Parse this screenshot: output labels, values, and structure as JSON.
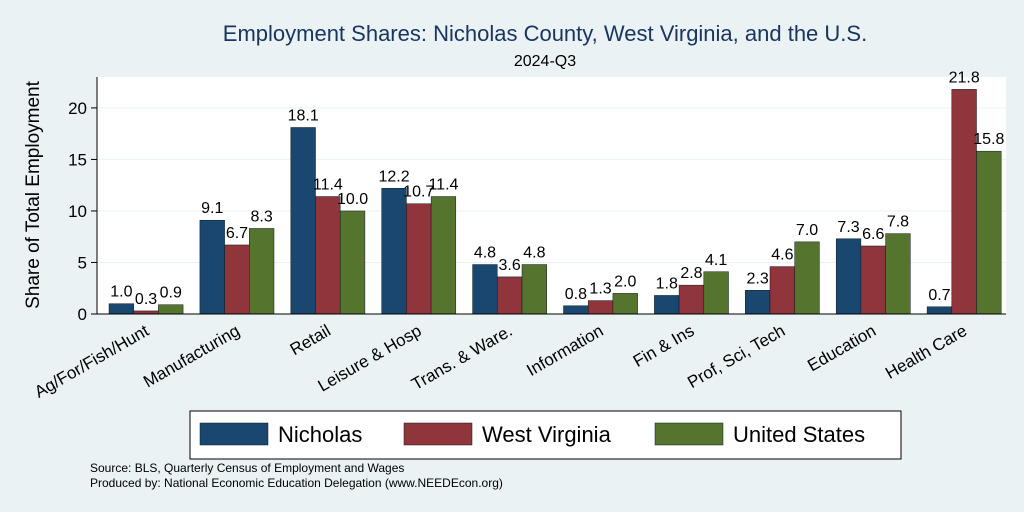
{
  "chart_data": {
    "type": "bar",
    "title": "Employment Shares: Nicholas County, West Virginia, and the U.S.",
    "subtitle": "2024-Q3",
    "xlabel": "",
    "ylabel": "Share of Total Employment",
    "ylim": [
      0,
      23
    ],
    "yticks": [
      0,
      5,
      10,
      15,
      20
    ],
    "grid": true,
    "legend_position": "bottom",
    "categories": [
      "Ag/For/Fish/Hunt",
      "Manufacturing",
      "Retail",
      "Leisure & Hosp",
      "Trans. & Ware.",
      "Information",
      "Fin & Ins",
      "Prof, Sci, Tech",
      "Education",
      "Health Care"
    ],
    "series": [
      {
        "name": "Nicholas",
        "color": "#1a476f",
        "values": [
          1.0,
          9.1,
          18.1,
          12.2,
          4.8,
          0.8,
          1.8,
          2.3,
          7.3,
          0.7
        ]
      },
      {
        "name": "West Virginia",
        "color": "#90353b",
        "values": [
          0.3,
          6.7,
          11.4,
          10.7,
          3.6,
          1.3,
          2.8,
          4.6,
          6.6,
          21.8
        ]
      },
      {
        "name": "United States",
        "color": "#55752f",
        "values": [
          0.9,
          8.3,
          10.0,
          11.4,
          4.8,
          2.0,
          4.1,
          7.0,
          7.8,
          15.8
        ]
      }
    ],
    "notes": [
      "Source: BLS, Quarterly Census of Employment and Wages",
      "Produced by: National Economic Education Delegation (www.NEEDEcon.org)"
    ]
  }
}
